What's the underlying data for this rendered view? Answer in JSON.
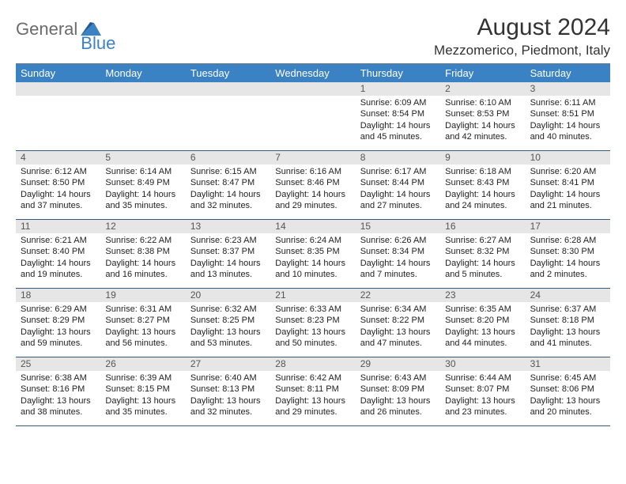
{
  "logo": {
    "text1": "General",
    "text2": "Blue"
  },
  "title": "August 2024",
  "location": "Mezzomerico, Piedmont, Italy",
  "colors": {
    "header_bg": "#3b82c4",
    "header_text": "#ffffff",
    "daynum_bg": "#e6e6e6",
    "daynum_text": "#555555",
    "body_text": "#222222",
    "rule": "#3b5a7a",
    "logo_gray": "#6b6b6b",
    "logo_blue": "#3b82c4"
  },
  "weekdays": [
    "Sunday",
    "Monday",
    "Tuesday",
    "Wednesday",
    "Thursday",
    "Friday",
    "Saturday"
  ],
  "weeks": [
    [
      {
        "num": "",
        "lines": []
      },
      {
        "num": "",
        "lines": []
      },
      {
        "num": "",
        "lines": []
      },
      {
        "num": "",
        "lines": []
      },
      {
        "num": "1",
        "lines": [
          "Sunrise: 6:09 AM",
          "Sunset: 8:54 PM",
          "Daylight: 14 hours",
          "and 45 minutes."
        ]
      },
      {
        "num": "2",
        "lines": [
          "Sunrise: 6:10 AM",
          "Sunset: 8:53 PM",
          "Daylight: 14 hours",
          "and 42 minutes."
        ]
      },
      {
        "num": "3",
        "lines": [
          "Sunrise: 6:11 AM",
          "Sunset: 8:51 PM",
          "Daylight: 14 hours",
          "and 40 minutes."
        ]
      }
    ],
    [
      {
        "num": "4",
        "lines": [
          "Sunrise: 6:12 AM",
          "Sunset: 8:50 PM",
          "Daylight: 14 hours",
          "and 37 minutes."
        ]
      },
      {
        "num": "5",
        "lines": [
          "Sunrise: 6:14 AM",
          "Sunset: 8:49 PM",
          "Daylight: 14 hours",
          "and 35 minutes."
        ]
      },
      {
        "num": "6",
        "lines": [
          "Sunrise: 6:15 AM",
          "Sunset: 8:47 PM",
          "Daylight: 14 hours",
          "and 32 minutes."
        ]
      },
      {
        "num": "7",
        "lines": [
          "Sunrise: 6:16 AM",
          "Sunset: 8:46 PM",
          "Daylight: 14 hours",
          "and 29 minutes."
        ]
      },
      {
        "num": "8",
        "lines": [
          "Sunrise: 6:17 AM",
          "Sunset: 8:44 PM",
          "Daylight: 14 hours",
          "and 27 minutes."
        ]
      },
      {
        "num": "9",
        "lines": [
          "Sunrise: 6:18 AM",
          "Sunset: 8:43 PM",
          "Daylight: 14 hours",
          "and 24 minutes."
        ]
      },
      {
        "num": "10",
        "lines": [
          "Sunrise: 6:20 AM",
          "Sunset: 8:41 PM",
          "Daylight: 14 hours",
          "and 21 minutes."
        ]
      }
    ],
    [
      {
        "num": "11",
        "lines": [
          "Sunrise: 6:21 AM",
          "Sunset: 8:40 PM",
          "Daylight: 14 hours",
          "and 19 minutes."
        ]
      },
      {
        "num": "12",
        "lines": [
          "Sunrise: 6:22 AM",
          "Sunset: 8:38 PM",
          "Daylight: 14 hours",
          "and 16 minutes."
        ]
      },
      {
        "num": "13",
        "lines": [
          "Sunrise: 6:23 AM",
          "Sunset: 8:37 PM",
          "Daylight: 14 hours",
          "and 13 minutes."
        ]
      },
      {
        "num": "14",
        "lines": [
          "Sunrise: 6:24 AM",
          "Sunset: 8:35 PM",
          "Daylight: 14 hours",
          "and 10 minutes."
        ]
      },
      {
        "num": "15",
        "lines": [
          "Sunrise: 6:26 AM",
          "Sunset: 8:34 PM",
          "Daylight: 14 hours",
          "and 7 minutes."
        ]
      },
      {
        "num": "16",
        "lines": [
          "Sunrise: 6:27 AM",
          "Sunset: 8:32 PM",
          "Daylight: 14 hours",
          "and 5 minutes."
        ]
      },
      {
        "num": "17",
        "lines": [
          "Sunrise: 6:28 AM",
          "Sunset: 8:30 PM",
          "Daylight: 14 hours",
          "and 2 minutes."
        ]
      }
    ],
    [
      {
        "num": "18",
        "lines": [
          "Sunrise: 6:29 AM",
          "Sunset: 8:29 PM",
          "Daylight: 13 hours",
          "and 59 minutes."
        ]
      },
      {
        "num": "19",
        "lines": [
          "Sunrise: 6:31 AM",
          "Sunset: 8:27 PM",
          "Daylight: 13 hours",
          "and 56 minutes."
        ]
      },
      {
        "num": "20",
        "lines": [
          "Sunrise: 6:32 AM",
          "Sunset: 8:25 PM",
          "Daylight: 13 hours",
          "and 53 minutes."
        ]
      },
      {
        "num": "21",
        "lines": [
          "Sunrise: 6:33 AM",
          "Sunset: 8:23 PM",
          "Daylight: 13 hours",
          "and 50 minutes."
        ]
      },
      {
        "num": "22",
        "lines": [
          "Sunrise: 6:34 AM",
          "Sunset: 8:22 PM",
          "Daylight: 13 hours",
          "and 47 minutes."
        ]
      },
      {
        "num": "23",
        "lines": [
          "Sunrise: 6:35 AM",
          "Sunset: 8:20 PM",
          "Daylight: 13 hours",
          "and 44 minutes."
        ]
      },
      {
        "num": "24",
        "lines": [
          "Sunrise: 6:37 AM",
          "Sunset: 8:18 PM",
          "Daylight: 13 hours",
          "and 41 minutes."
        ]
      }
    ],
    [
      {
        "num": "25",
        "lines": [
          "Sunrise: 6:38 AM",
          "Sunset: 8:16 PM",
          "Daylight: 13 hours",
          "and 38 minutes."
        ]
      },
      {
        "num": "26",
        "lines": [
          "Sunrise: 6:39 AM",
          "Sunset: 8:15 PM",
          "Daylight: 13 hours",
          "and 35 minutes."
        ]
      },
      {
        "num": "27",
        "lines": [
          "Sunrise: 6:40 AM",
          "Sunset: 8:13 PM",
          "Daylight: 13 hours",
          "and 32 minutes."
        ]
      },
      {
        "num": "28",
        "lines": [
          "Sunrise: 6:42 AM",
          "Sunset: 8:11 PM",
          "Daylight: 13 hours",
          "and 29 minutes."
        ]
      },
      {
        "num": "29",
        "lines": [
          "Sunrise: 6:43 AM",
          "Sunset: 8:09 PM",
          "Daylight: 13 hours",
          "and 26 minutes."
        ]
      },
      {
        "num": "30",
        "lines": [
          "Sunrise: 6:44 AM",
          "Sunset: 8:07 PM",
          "Daylight: 13 hours",
          "and 23 minutes."
        ]
      },
      {
        "num": "31",
        "lines": [
          "Sunrise: 6:45 AM",
          "Sunset: 8:06 PM",
          "Daylight: 13 hours",
          "and 20 minutes."
        ]
      }
    ]
  ]
}
